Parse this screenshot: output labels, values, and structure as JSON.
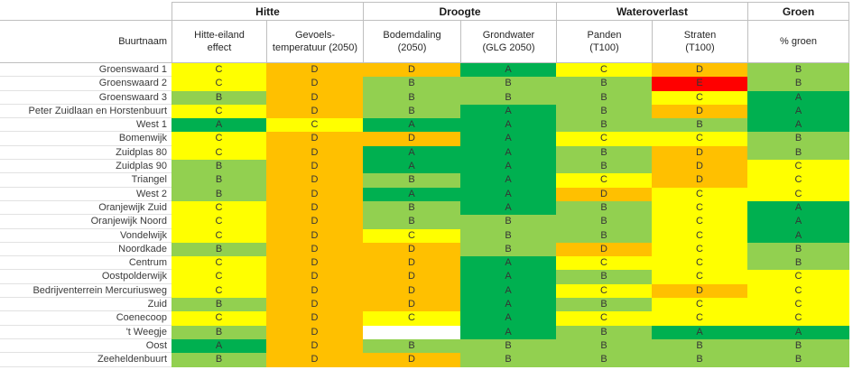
{
  "chart_data": {
    "type": "heatmap",
    "title": "",
    "legend_position": "none",
    "groups": [
      {
        "label": "Hitte"
      },
      {
        "label": "Droogte"
      },
      {
        "label": "Wateroverlast"
      },
      {
        "label": "Groen"
      }
    ],
    "row_header": "Buurtnaam",
    "columns": [
      "Hitte-eiland\neffect",
      "Gevoels-\ntemperatuur (2050)",
      "Bodemdaling\n(2050)",
      "Grondwater\n(GLG 2050)",
      "Panden\n(T100)",
      "Straten\n(T100)",
      "% groen"
    ],
    "grade_colors": {
      "A": "#00B050",
      "B": "#92D050",
      "C": "#FFFF00",
      "D": "#FFC000",
      "E": "#FF0000",
      "": "#FFFFFF"
    },
    "rows": [
      {
        "name": "Groenswaard 1",
        "grades": [
          "C",
          "D",
          "D",
          "A",
          "C",
          "D",
          "B"
        ]
      },
      {
        "name": "Groenswaard 2",
        "grades": [
          "C",
          "D",
          "B",
          "B",
          "B",
          "E",
          "B"
        ]
      },
      {
        "name": "Groenswaard 3",
        "grades": [
          "B",
          "D",
          "B",
          "B",
          "B",
          "C",
          "A"
        ]
      },
      {
        "name": "Peter Zuidlaan en Horstenbuurt",
        "grades": [
          "C",
          "D",
          "B",
          "A",
          "B",
          "D",
          "A"
        ]
      },
      {
        "name": "West 1",
        "grades": [
          "A",
          "C",
          "A",
          "A",
          "B",
          "B",
          "A"
        ]
      },
      {
        "name": "Bomenwijk",
        "grades": [
          "C",
          "D",
          "D",
          "A",
          "C",
          "C",
          "B"
        ]
      },
      {
        "name": "Zuidplas 80",
        "grades": [
          "C",
          "D",
          "A",
          "A",
          "B",
          "D",
          "B"
        ]
      },
      {
        "name": "Zuidplas 90",
        "grades": [
          "B",
          "D",
          "A",
          "A",
          "B",
          "D",
          "C"
        ]
      },
      {
        "name": "Triangel",
        "grades": [
          "B",
          "D",
          "B",
          "A",
          "C",
          "D",
          "C"
        ]
      },
      {
        "name": "West 2",
        "grades": [
          "B",
          "D",
          "A",
          "A",
          "D",
          "C",
          "C"
        ]
      },
      {
        "name": "Oranjewijk Zuid",
        "grades": [
          "C",
          "D",
          "B",
          "A",
          "B",
          "C",
          "A"
        ]
      },
      {
        "name": "Oranjewijk Noord",
        "grades": [
          "C",
          "D",
          "B",
          "B",
          "B",
          "C",
          "A"
        ]
      },
      {
        "name": "Vondelwijk",
        "grades": [
          "C",
          "D",
          "C",
          "B",
          "B",
          "C",
          "A"
        ]
      },
      {
        "name": "Noordkade",
        "grades": [
          "B",
          "D",
          "D",
          "B",
          "D",
          "C",
          "B"
        ]
      },
      {
        "name": "Centrum",
        "grades": [
          "C",
          "D",
          "D",
          "A",
          "C",
          "C",
          "B"
        ]
      },
      {
        "name": "Oostpolderwijk",
        "grades": [
          "C",
          "D",
          "D",
          "A",
          "B",
          "C",
          "C"
        ]
      },
      {
        "name": "Bedrijventerrein Mercuriusweg",
        "grades": [
          "C",
          "D",
          "D",
          "A",
          "C",
          "D",
          "C"
        ]
      },
      {
        "name": "Zuid",
        "grades": [
          "B",
          "D",
          "D",
          "A",
          "B",
          "C",
          "C"
        ]
      },
      {
        "name": "Coenecoop",
        "grades": [
          "C",
          "D",
          "C",
          "A",
          "C",
          "C",
          "C"
        ]
      },
      {
        "name": "'t Weegje",
        "grades": [
          "B",
          "D",
          "",
          "A",
          "B",
          "A",
          "A"
        ]
      },
      {
        "name": "Oost",
        "grades": [
          "A",
          "D",
          "B",
          "B",
          "B",
          "B",
          "B"
        ]
      },
      {
        "name": "Zeeheldenbuurt",
        "grades": [
          "B",
          "D",
          "D",
          "B",
          "B",
          "B",
          "B"
        ]
      }
    ]
  }
}
